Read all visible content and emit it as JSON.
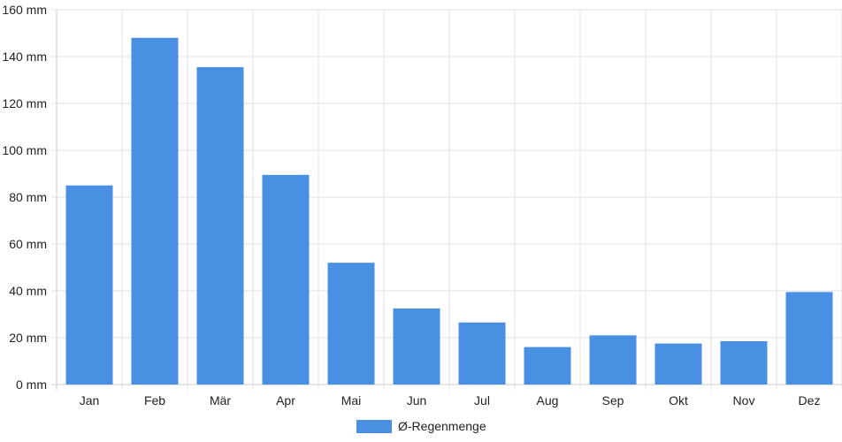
{
  "chart_data": {
    "type": "bar",
    "categories": [
      "Jan",
      "Feb",
      "Mär",
      "Apr",
      "Mai",
      "Jun",
      "Jul",
      "Aug",
      "Sep",
      "Okt",
      "Nov",
      "Dez"
    ],
    "series": [
      {
        "name": "Ø-Regenmenge",
        "values": [
          85,
          148,
          135.5,
          89.5,
          52,
          32.5,
          26.5,
          16,
          21,
          17.5,
          18.5,
          39.5
        ]
      }
    ],
    "y_ticks": [
      "0 mm",
      "20 mm",
      "40 mm",
      "60 mm",
      "80 mm",
      "100 mm",
      "120 mm",
      "140 mm",
      "160 mm"
    ],
    "ylim": [
      0,
      160
    ],
    "y_unit": "mm",
    "grid": true,
    "legend_position": "bottom",
    "colors": {
      "bar": "#4a90e2",
      "grid": "#e2e2e2",
      "axis": "#cccccc"
    }
  }
}
